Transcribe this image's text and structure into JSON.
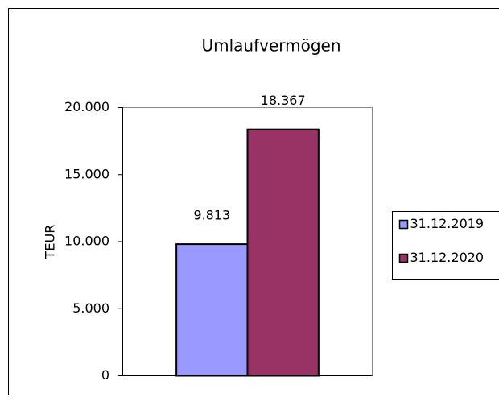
{
  "chart_data": {
    "type": "bar",
    "title": "Umlaufvermögen",
    "y_label": "TEUR",
    "categories": [
      null
    ],
    "series": [
      {
        "name": "31.12.2019",
        "color": "#9999ff",
        "values": [
          9813
        ],
        "value_labels": [
          "9.813"
        ]
      },
      {
        "name": "31.12.2020",
        "color": "#993366",
        "values": [
          18367
        ],
        "value_labels": [
          "18.367"
        ]
      }
    ],
    "ylim": [
      0,
      20000
    ],
    "yticks": [
      0,
      {
        "value": 5000,
        "label": "5.000"
      },
      {
        "value": 10000,
        "label": "10.000"
      },
      {
        "value": 15000,
        "label": "15.000"
      },
      {
        "value": 20000,
        "label": "20.000"
      }
    ],
    "legend": "right"
  }
}
